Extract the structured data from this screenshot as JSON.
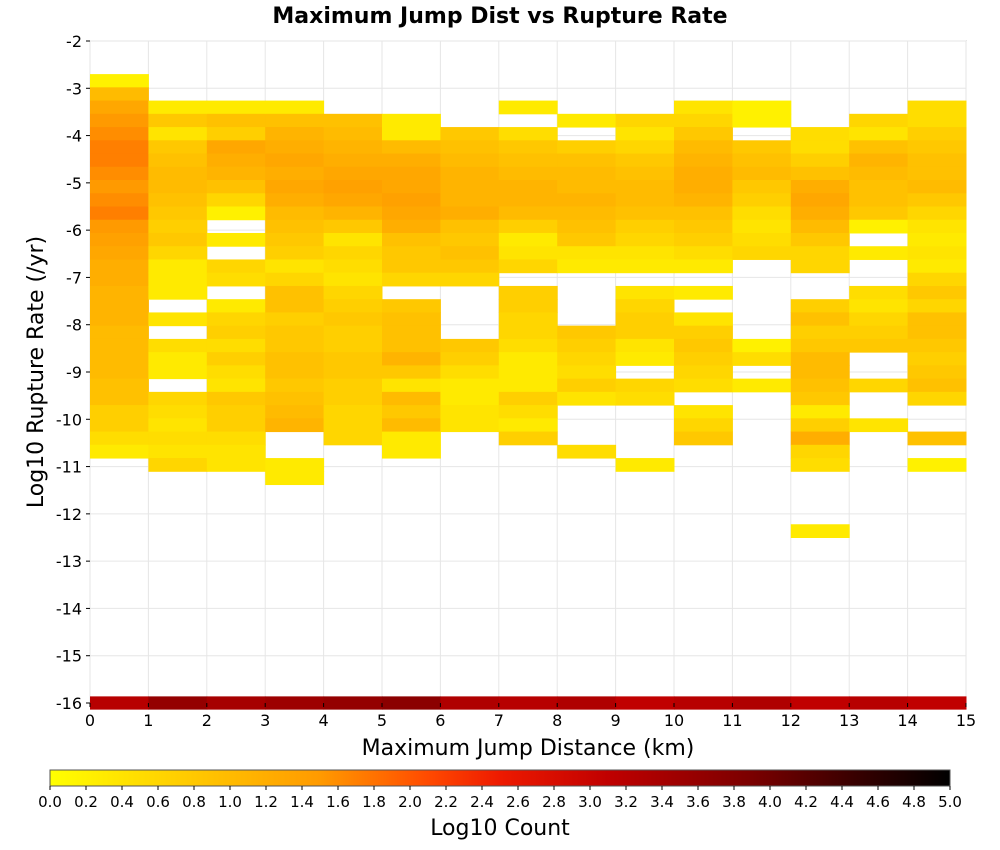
{
  "chart_data": {
    "type": "heatmap",
    "title": "Maximum Jump Dist vs Rupture Rate",
    "xlabel": "Maximum Jump Distance (km)",
    "ylabel": "Log10 Rupture Rate (/yr)",
    "xlim": [
      0,
      15
    ],
    "ylim": [
      -16,
      -2
    ],
    "x_ticks": [
      "0",
      "1",
      "2",
      "3",
      "4",
      "5",
      "6",
      "7",
      "8",
      "9",
      "10",
      "11",
      "12",
      "13",
      "14",
      "15"
    ],
    "y_ticks": [
      "-2",
      "-3",
      "-4",
      "-5",
      "-6",
      "-7",
      "-8",
      "-9",
      "-10",
      "-11",
      "-12",
      "-13",
      "-14",
      "-15",
      "-16"
    ],
    "grid": true,
    "x_bin_width": 1,
    "y_bin_height": 0.28,
    "colorbar": {
      "label": "Log10 Count",
      "range": [
        0,
        5
      ],
      "colormap": "yellow-orange-red-black",
      "tick_labels": [
        "0.0",
        "0.2",
        "0.4",
        "0.6",
        "0.8",
        "1.0",
        "1.2",
        "1.4",
        "1.6",
        "1.8",
        "2.0",
        "2.2",
        "2.4",
        "2.6",
        "2.8",
        "3.0",
        "3.2",
        "3.4",
        "3.6",
        "3.8",
        "4.0",
        "4.2",
        "4.4",
        "4.6",
        "4.8",
        "5.0"
      ]
    },
    "columns": [
      {
        "x": 0,
        "y_start": -2.7,
        "values": [
          0.2,
          1.0,
          1.3,
          1.5,
          1.6,
          1.7,
          1.7,
          1.6,
          1.5,
          1.6,
          1.7,
          1.5,
          1.4,
          1.3,
          1.2,
          1.2,
          1.1,
          1.1,
          1.1,
          1.0,
          1.0,
          1.0,
          1.0,
          0.9,
          0.9,
          0.7,
          0.7,
          0.5,
          0.3
        ]
      },
      {
        "x": 1,
        "y_start": -3.26,
        "values": [
          0.3,
          0.8,
          0.4,
          0.8,
          0.9,
          1.0,
          1.0,
          0.9,
          0.8,
          0.7,
          0.8,
          0.6,
          0.3,
          0.3,
          0.3,
          null,
          0.4,
          null,
          0.5,
          0.3,
          0.3,
          null,
          0.6,
          0.5,
          0.4,
          0.5,
          0.4,
          0.6
        ]
      },
      {
        "x": 2,
        "y_start": -3.26,
        "values": [
          0.3,
          0.9,
          0.7,
          1.3,
          1.2,
          1.1,
          0.9,
          0.6,
          0.2,
          null,
          0.3,
          null,
          0.6,
          0.5,
          null,
          0.3,
          0.6,
          0.7,
          0.5,
          0.7,
          0.5,
          0.4,
          0.8,
          0.7,
          0.7,
          0.5,
          0.4,
          0.4
        ]
      },
      {
        "x": 3,
        "y_start": -3.26,
        "values": [
          0.3,
          0.9,
          1.1,
          1.2,
          1.3,
          1.2,
          1.3,
          1.2,
          1.0,
          0.9,
          0.8,
          0.7,
          0.4,
          0.6,
          0.9,
          0.9,
          0.7,
          0.8,
          0.8,
          0.9,
          0.9,
          0.8,
          0.9,
          1.0,
          1.1,
          null,
          null,
          0.3,
          0.3
        ]
      },
      {
        "x": 4,
        "y_start": -3.54,
        "values": [
          0.9,
          1.0,
          1.1,
          1.2,
          1.3,
          1.4,
          1.3,
          1.1,
          0.8,
          0.4,
          0.6,
          0.5,
          0.4,
          0.6,
          0.7,
          0.8,
          0.7,
          0.7,
          0.8,
          0.8,
          0.7,
          0.7,
          0.6,
          0.6,
          0.6
        ]
      },
      {
        "x": 5,
        "y_start": -3.54,
        "values": [
          0.3,
          0.3,
          1.0,
          1.2,
          1.3,
          1.3,
          1.4,
          1.3,
          1.2,
          0.9,
          0.8,
          0.8,
          0.6,
          null,
          0.8,
          0.9,
          0.9,
          0.9,
          1.1,
          0.8,
          0.4,
          1.0,
          0.8,
          1.0,
          0.3,
          0.3
        ]
      },
      {
        "x": 6,
        "y_start": -3.82,
        "values": [
          0.8,
          0.9,
          1.0,
          1.1,
          1.1,
          1.1,
          1.2,
          0.9,
          0.8,
          0.9,
          0.8,
          0.6,
          null,
          null,
          null,
          null,
          0.8,
          0.7,
          0.5,
          0.3,
          0.3,
          0.4,
          0.4
        ]
      },
      {
        "x": 7,
        "y_start": -3.26,
        "values": [
          0.3,
          null,
          0.5,
          0.8,
          0.9,
          1.0,
          1.1,
          1.1,
          1.0,
          0.7,
          0.3,
          0.4,
          0.6,
          null,
          0.7,
          0.7,
          0.6,
          0.6,
          0.5,
          0.3,
          0.3,
          0.3,
          0.7,
          0.5,
          0.3,
          0.7
        ]
      },
      {
        "x": 8,
        "y_start": -3.54,
        "values": [
          0.3,
          null,
          0.7,
          0.9,
          1.0,
          1.0,
          1.1,
          1.0,
          0.9,
          0.8,
          0.4,
          0.3,
          null,
          null,
          null,
          null,
          0.8,
          0.7,
          0.6,
          0.5,
          0.7,
          0.4,
          null,
          null,
          null,
          0.5
        ]
      },
      {
        "x": 9,
        "y_start": -3.54,
        "values": [
          0.6,
          0.4,
          0.6,
          0.8,
          0.9,
          1.0,
          1.0,
          0.9,
          0.7,
          0.6,
          0.4,
          0.3,
          null,
          0.4,
          0.6,
          0.7,
          0.7,
          0.4,
          0.3,
          null,
          0.6,
          0.5,
          null,
          null,
          null,
          null,
          0.3
        ]
      },
      {
        "x": 10,
        "y_start": -3.26,
        "values": [
          0.4,
          0.6,
          0.8,
          1.0,
          1.1,
          1.2,
          1.2,
          1.1,
          0.9,
          0.8,
          0.7,
          0.5,
          0.3,
          null,
          0.3,
          null,
          0.4,
          0.7,
          0.8,
          0.7,
          0.6,
          0.5,
          null,
          0.4,
          0.6,
          0.8
        ]
      },
      {
        "x": 11,
        "y_start": -3.26,
        "values": [
          0.2,
          0.2,
          null,
          0.8,
          0.9,
          1.0,
          0.8,
          0.7,
          0.5,
          0.4,
          0.5,
          0.6,
          null,
          null,
          null,
          null,
          null,
          null,
          0.2,
          0.5,
          null,
          0.3
        ]
      },
      {
        "x": 12,
        "y_start": -3.82,
        "values": [
          0.5,
          0.5,
          0.7,
          0.9,
          1.2,
          1.3,
          1.2,
          1.0,
          0.8,
          0.6,
          0.6,
          null,
          null,
          0.7,
          0.9,
          0.7,
          0.8,
          1.0,
          1.0,
          0.9,
          0.8,
          0.3,
          0.7,
          1.2,
          0.6,
          0.5,
          null,
          null,
          null,
          null,
          0.3
        ]
      },
      {
        "x": 13,
        "y_start": -3.54,
        "values": [
          0.6,
          0.4,
          0.9,
          1.1,
          1.0,
          0.9,
          0.9,
          0.8,
          0.2,
          null,
          0.3,
          null,
          null,
          0.5,
          0.4,
          0.6,
          0.7,
          0.8,
          null,
          null,
          0.6,
          null,
          null,
          0.4
        ]
      },
      {
        "x": 14,
        "y_start": -3.26,
        "values": [
          0.5,
          0.5,
          0.7,
          0.8,
          0.9,
          0.9,
          1.0,
          0.8,
          0.6,
          0.4,
          0.3,
          0.4,
          0.3,
          0.6,
          0.8,
          0.6,
          0.9,
          0.9,
          0.8,
          0.7,
          0.8,
          0.9,
          0.6,
          null,
          null,
          0.9,
          null,
          0.2
        ]
      }
    ],
    "baseline_row": {
      "y_start": -15.86,
      "values": [
        3.2,
        3.6,
        3.4,
        3.5,
        3.6,
        3.7,
        3.3,
        3.2,
        3.3,
        3.1,
        3.2,
        3.3,
        3.1,
        3.2,
        3.1
      ]
    }
  }
}
